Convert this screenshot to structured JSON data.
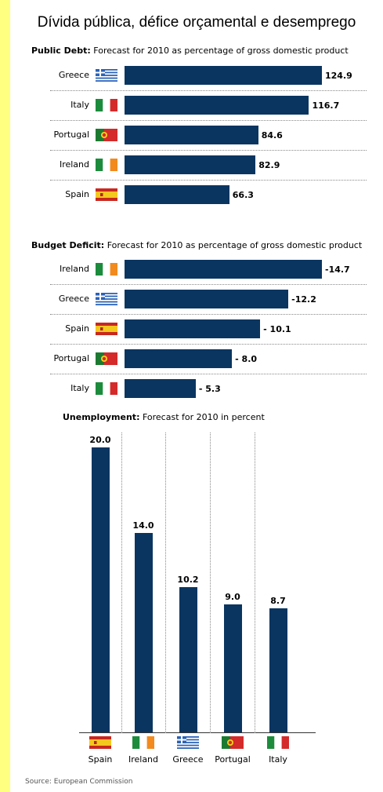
{
  "title": "Dívida pública, défice orçamental e desemprego",
  "source": "Source: European Commission",
  "icons": {
    "Greece": "greece-flag-icon",
    "Italy": "italy-flag-icon",
    "Portugal": "portugal-flag-icon",
    "Ireland": "ireland-flag-icon",
    "Spain": "spain-flag-icon"
  },
  "colors": {
    "bar": "#0a3560",
    "accent_strip": "#ffff80"
  },
  "chart_data": [
    {
      "type": "bar",
      "orientation": "horizontal",
      "title": "Public Debt:",
      "subtitle": "Forecast for 2010 as percentage of gross domestic product",
      "categories": [
        "Greece",
        "Italy",
        "Portugal",
        "Ireland",
        "Spain"
      ],
      "values": [
        124.9,
        116.7,
        84.6,
        82.9,
        66.3
      ],
      "value_labels": [
        "124.9",
        "116.7",
        "84.6",
        "82.9",
        "66.3"
      ],
      "xlim": [
        0,
        124.9
      ]
    },
    {
      "type": "bar",
      "orientation": "horizontal",
      "title": "Budget Deficit:",
      "subtitle": "Forecast for 2010 as percentage of gross domestic product",
      "categories": [
        "Ireland",
        "Greece",
        "Spain",
        "Portugal",
        "Italy"
      ],
      "values": [
        -14.7,
        -12.2,
        -10.1,
        -8.0,
        -5.3
      ],
      "value_labels": [
        "-14.7",
        "-12.2",
        "- 10.1",
        "- 8.0",
        "- 5.3"
      ],
      "xlim": [
        0,
        14.7
      ]
    },
    {
      "type": "bar",
      "orientation": "vertical",
      "title": "Unemployment:",
      "subtitle": "Forecast for 2010 in percent",
      "categories": [
        "Spain",
        "Ireland",
        "Greece",
        "Portugal",
        "Italy"
      ],
      "values": [
        20.0,
        14.0,
        10.2,
        9.0,
        8.7
      ],
      "value_labels": [
        "20.0",
        "14.0",
        "10.2",
        "9.0",
        "8.7"
      ],
      "ylim": [
        0,
        20.0
      ]
    }
  ]
}
